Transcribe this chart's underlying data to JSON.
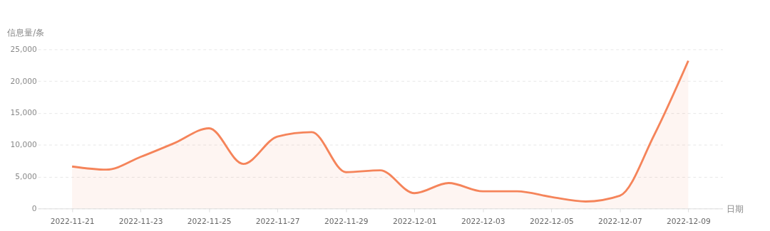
{
  "chart_data": {
    "type": "area",
    "xlabel": "日期",
    "ylabel": "信息量/条",
    "x": [
      "2022-11-21",
      "2022-11-22",
      "2022-11-23",
      "2022-11-24",
      "2022-11-25",
      "2022-11-26",
      "2022-11-27",
      "2022-11-28",
      "2022-11-29",
      "2022-11-30",
      "2022-12-01",
      "2022-12-02",
      "2022-12-03",
      "2022-12-04",
      "2022-12-05",
      "2022-12-06",
      "2022-12-07",
      "2022-12-08",
      "2022-12-09"
    ],
    "series": [
      {
        "color": "#f5845a",
        "values": [
          6600,
          6100,
          8100,
          10300,
          12600,
          7000,
          11300,
          12000,
          5700,
          6000,
          2400,
          4000,
          2700,
          2700,
          1800,
          1100,
          2000,
          11500,
          23200
        ]
      }
    ],
    "xlim": [
      "2022-11-20",
      "2022-12-10"
    ],
    "xticks": [
      "2022-11-21",
      "2022-11-23",
      "2022-11-25",
      "2022-11-27",
      "2022-11-29",
      "2022-12-01",
      "2022-12-03",
      "2022-12-05",
      "2022-12-07",
      "2022-12-09"
    ],
    "ylim": [
      0,
      25000
    ],
    "yticks": [
      0,
      {
        "value": 5000,
        "label": "5,000"
      },
      {
        "value": 10000,
        "label": "10,000"
      },
      {
        "value": 15000,
        "label": "15,000"
      },
      {
        "value": 20000,
        "label": "20,000"
      },
      {
        "value": 25000,
        "label": "25,000"
      }
    ],
    "grid": "y",
    "line_style": "solid",
    "marker": "none"
  }
}
